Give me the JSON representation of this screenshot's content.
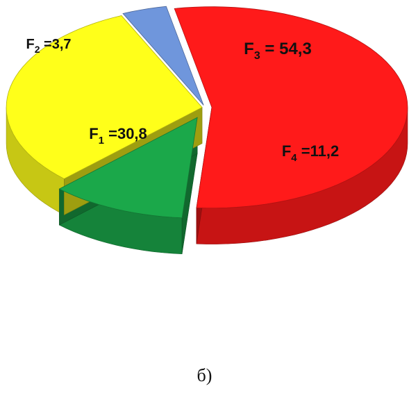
{
  "chart_data": {
    "type": "pie",
    "style": "3d-exploded",
    "slices": [
      {
        "sym": "F",
        "sub": "3",
        "sep": " = ",
        "value": 54.3,
        "value_text": "54,3",
        "color": "#ff1a1a"
      },
      {
        "sym": "F",
        "sub": "4",
        "sep": " =",
        "value": 11.2,
        "value_text": "11,2",
        "color": "#1ba84a"
      },
      {
        "sym": "F",
        "sub": "1",
        "sep": " =",
        "value": 30.8,
        "value_text": "30,8",
        "color": "#ffff1a"
      },
      {
        "sym": "F",
        "sub": "2",
        "sep": " =",
        "value": 3.7,
        "value_text": "3,7",
        "color": "#6f96dc"
      }
    ]
  },
  "caption": "б)"
}
